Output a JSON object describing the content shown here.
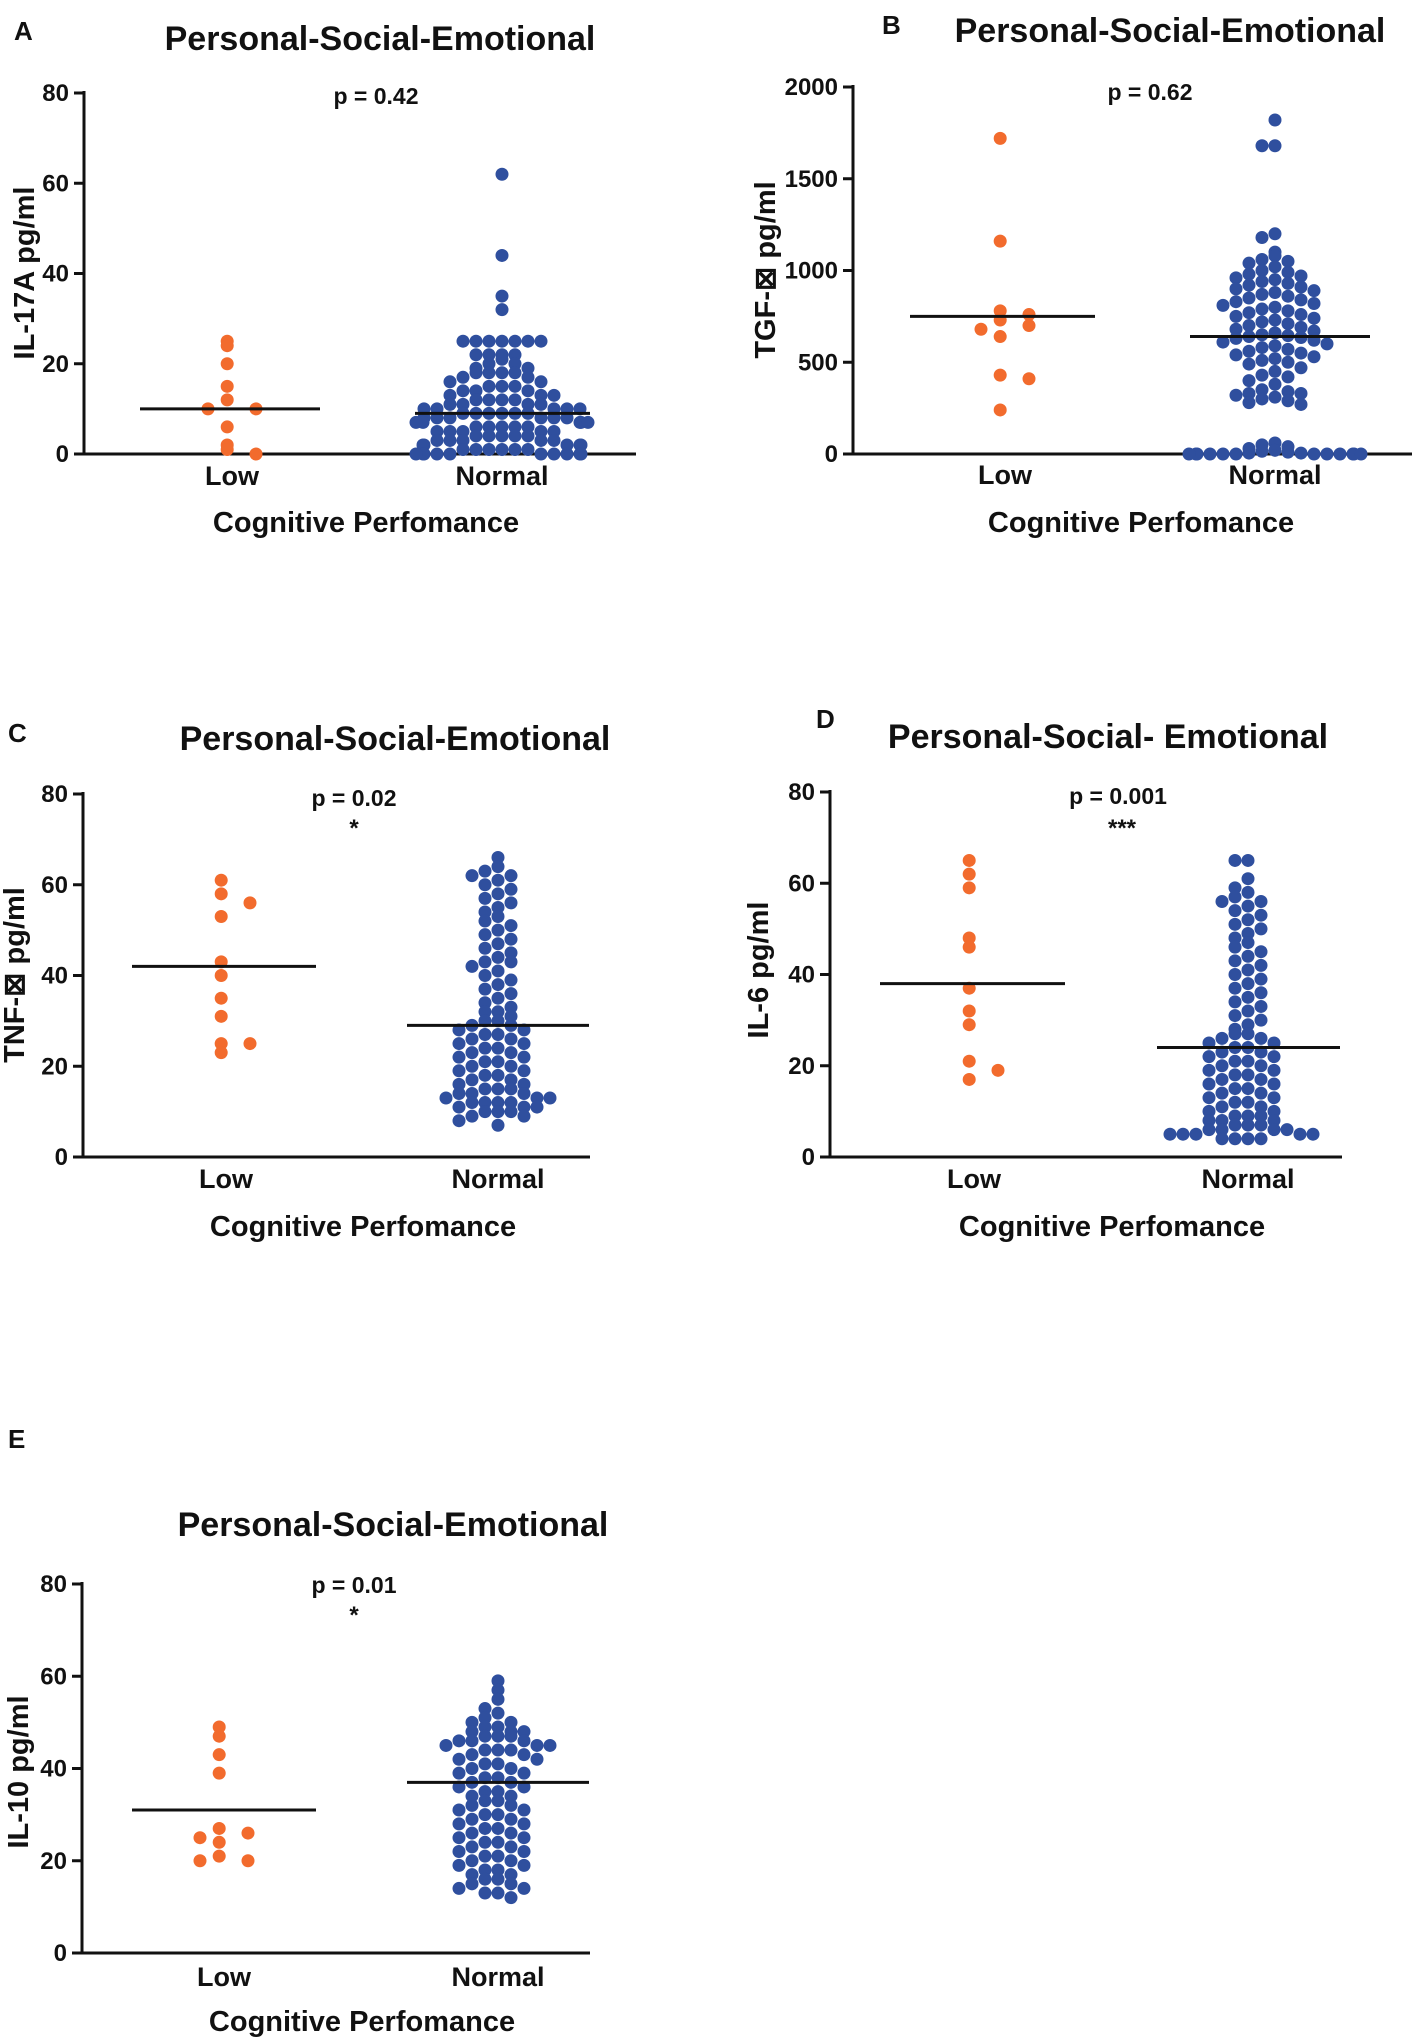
{
  "colors": {
    "low": "#f26b2d",
    "normal": "#2f4f9e",
    "axis": "#111111",
    "median": "#111111"
  },
  "chart_data": [
    {
      "panel": "A",
      "type": "scatter",
      "title": "Personal-Social-Emotional",
      "ylabel": "IL-17A pg/ml",
      "xlabel": "Cognitive Perfomance",
      "categories": [
        "Low",
        "Normal"
      ],
      "ylim": [
        0,
        80
      ],
      "yticks": [
        "0",
        "20",
        "40",
        "60",
        "80"
      ],
      "ytick_values": [
        0,
        20,
        40,
        60,
        80
      ],
      "p_value": "p = 0.42",
      "significance": "",
      "series": [
        {
          "name": "Low",
          "median": 10,
          "values": [
            25,
            24,
            20,
            15,
            12,
            10,
            10,
            6,
            2,
            1,
            0
          ]
        },
        {
          "name": "Normal",
          "median": 9,
          "values": [
            62,
            44,
            35,
            32,
            25,
            25,
            25,
            25,
            25,
            25,
            25,
            22,
            22,
            22,
            22,
            21,
            20,
            20,
            19,
            19,
            18,
            18,
            18,
            18,
            17,
            17,
            16,
            16,
            15,
            15,
            15,
            14,
            14,
            14,
            13,
            13,
            13,
            12,
            12,
            12,
            12,
            11,
            11,
            11,
            11,
            10,
            10,
            10,
            10,
            10,
            9,
            9,
            9,
            9,
            9,
            9,
            8,
            8,
            8,
            8,
            8,
            8,
            7,
            7,
            7,
            7,
            7,
            6,
            6,
            6,
            6,
            6,
            5,
            5,
            5,
            5,
            5,
            4,
            4,
            4,
            4,
            4,
            3,
            3,
            3,
            3,
            3,
            2,
            2,
            2,
            2,
            2,
            1,
            1,
            1,
            1,
            1,
            1,
            0,
            0,
            0,
            0,
            0,
            0,
            0,
            0,
            0,
            0
          ]
        }
      ]
    },
    {
      "panel": "B",
      "type": "scatter",
      "title": "Personal-Social-Emotional",
      "ylabel": "TGF-⊠ pg/ml",
      "xlabel": "Cognitive Perfomance",
      "categories": [
        "Low",
        "Normal"
      ],
      "ylim": [
        0,
        2000
      ],
      "yticks": [
        "0",
        "500",
        "1000",
        "1500",
        "2000"
      ],
      "ytick_values": [
        0,
        500,
        1000,
        1500,
        2000
      ],
      "p_value": "p = 0.62",
      "significance": "",
      "series": [
        {
          "name": "Low",
          "median": 750,
          "values": [
            1720,
            1160,
            780,
            760,
            730,
            700,
            680,
            640,
            430,
            410,
            240
          ]
        },
        {
          "name": "Normal",
          "median": 640,
          "values": [
            1820,
            1680,
            1680,
            1200,
            1180,
            1100,
            1080,
            1060,
            1050,
            1040,
            1020,
            1000,
            990,
            980,
            970,
            960,
            950,
            940,
            930,
            920,
            910,
            900,
            890,
            880,
            870,
            860,
            850,
            840,
            830,
            820,
            810,
            800,
            790,
            780,
            770,
            760,
            750,
            740,
            730,
            720,
            710,
            700,
            690,
            680,
            670,
            660,
            650,
            645,
            640,
            635,
            630,
            620,
            610,
            600,
            590,
            580,
            570,
            560,
            550,
            540,
            530,
            520,
            510,
            500,
            490,
            470,
            450,
            430,
            420,
            400,
            380,
            350,
            340,
            330,
            330,
            320,
            310,
            300,
            290,
            280,
            270,
            60,
            50,
            40,
            30,
            20,
            15,
            10,
            5,
            5,
            0,
            0,
            0,
            0,
            0,
            0,
            0,
            0,
            0,
            0,
            0,
            0
          ]
        }
      ]
    },
    {
      "panel": "C",
      "type": "scatter",
      "title": "Personal-Social-Emotional",
      "ylabel": "TNF-⊠ pg/ml",
      "xlabel": "Cognitive Perfomance",
      "categories": [
        "Low",
        "Normal"
      ],
      "ylim": [
        0,
        80
      ],
      "yticks": [
        "0",
        "20",
        "40",
        "60",
        "80"
      ],
      "ytick_values": [
        0,
        20,
        40,
        60,
        80
      ],
      "p_value": "p = 0.02",
      "significance": "*",
      "series": [
        {
          "name": "Low",
          "median": 42,
          "values": [
            61,
            58,
            56,
            53,
            43,
            40,
            35,
            31,
            25,
            25,
            23
          ]
        },
        {
          "name": "Normal",
          "median": 29,
          "values": [
            66,
            64,
            63,
            62,
            62,
            61,
            60,
            59,
            58,
            57,
            56,
            55,
            54,
            53,
            52,
            51,
            50,
            49,
            48,
            47,
            46,
            45,
            44,
            43,
            43,
            42,
            41,
            40,
            39,
            38,
            37,
            36,
            35,
            34,
            33,
            32,
            32,
            31,
            30,
            30,
            29,
            29,
            28,
            28,
            27,
            27,
            26,
            26,
            25,
            25,
            24,
            24,
            23,
            23,
            22,
            22,
            21,
            21,
            20,
            20,
            19,
            19,
            18,
            18,
            17,
            17,
            16,
            16,
            15,
            15,
            15,
            14,
            14,
            14,
            13,
            13,
            13,
            12,
            12,
            12,
            12,
            11,
            11,
            11,
            10,
            10,
            10,
            9,
            9,
            8,
            7
          ]
        }
      ]
    },
    {
      "panel": "D",
      "type": "scatter",
      "title": "Personal-Social- Emotional",
      "ylabel": "IL-6 pg/ml",
      "xlabel": "Cognitive Perfomance",
      "categories": [
        "Low",
        "Normal"
      ],
      "ylim": [
        0,
        80
      ],
      "yticks": [
        "0",
        "20",
        "40",
        "60",
        "80"
      ],
      "ytick_values": [
        0,
        20,
        40,
        60,
        80
      ],
      "p_value": "p = 0.001",
      "significance": "***",
      "series": [
        {
          "name": "Low",
          "median": 38,
          "values": [
            65,
            62,
            59,
            48,
            46,
            37,
            32,
            29,
            21,
            19,
            17
          ]
        },
        {
          "name": "Normal",
          "median": 24,
          "values": [
            65,
            65,
            61,
            59,
            58,
            57,
            56,
            56,
            55,
            54,
            53,
            52,
            51,
            50,
            49,
            48,
            47,
            46,
            45,
            44,
            43,
            42,
            41,
            40,
            39,
            38,
            37,
            36,
            35,
            34,
            33,
            32,
            31,
            30,
            29,
            28,
            27,
            27,
            26,
            26,
            25,
            25,
            24,
            24,
            23,
            23,
            22,
            22,
            21,
            21,
            20,
            20,
            19,
            19,
            18,
            18,
            17,
            17,
            16,
            16,
            15,
            15,
            14,
            14,
            13,
            13,
            12,
            12,
            11,
            11,
            10,
            10,
            9,
            9,
            9,
            8,
            8,
            8,
            7,
            7,
            7,
            6,
            6,
            6,
            6,
            5,
            5,
            5,
            5,
            5,
            4,
            4,
            4,
            4
          ]
        }
      ]
    },
    {
      "panel": "E",
      "type": "scatter",
      "title": "Personal-Social-Emotional",
      "ylabel": "IL-10 pg/ml",
      "xlabel": "Cognitive Perfomance",
      "categories": [
        "Low",
        "Normal"
      ],
      "ylim": [
        0,
        80
      ],
      "yticks": [
        "0",
        "20",
        "40",
        "60",
        "80"
      ],
      "ytick_values": [
        0,
        20,
        40,
        60,
        80
      ],
      "p_value": "p = 0.01",
      "significance": "*",
      "series": [
        {
          "name": "Low",
          "median": 31,
          "values": [
            49,
            47,
            43,
            39,
            27,
            26,
            25,
            24,
            21,
            20,
            20
          ]
        },
        {
          "name": "Normal",
          "median": 37,
          "values": [
            59,
            57,
            55,
            53,
            52,
            51,
            50,
            50,
            49,
            49,
            48,
            48,
            48,
            47,
            47,
            47,
            46,
            46,
            46,
            45,
            45,
            45,
            44,
            44,
            44,
            43,
            43,
            42,
            42,
            41,
            41,
            40,
            40,
            39,
            39,
            38,
            38,
            37,
            37,
            36,
            36,
            35,
            35,
            34,
            34,
            33,
            33,
            32,
            32,
            31,
            31,
            30,
            30,
            29,
            29,
            28,
            28,
            27,
            27,
            26,
            26,
            25,
            25,
            24,
            24,
            23,
            23,
            22,
            22,
            21,
            21,
            20,
            20,
            19,
            19,
            18,
            18,
            17,
            17,
            16,
            16,
            15,
            15,
            14,
            14,
            13,
            13,
            12
          ]
        }
      ]
    }
  ]
}
